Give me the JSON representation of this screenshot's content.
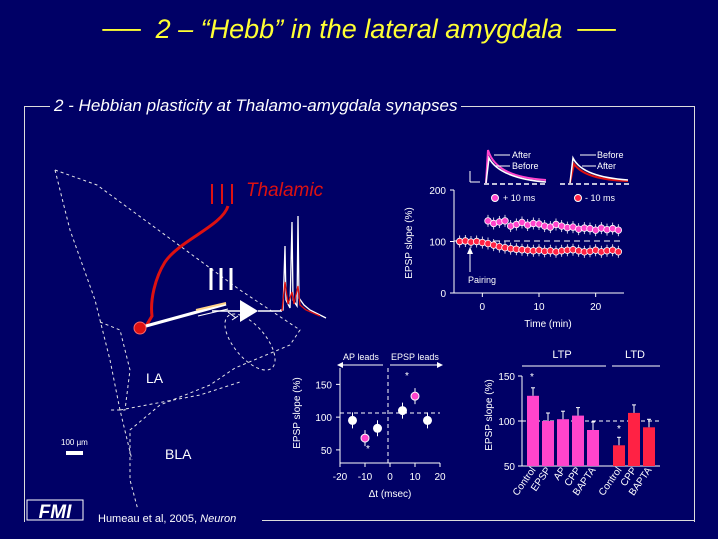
{
  "title": "2 – “Hebb” in the lateral amygdala",
  "subtitle": "2 - Hebbian plasticity at Thalamo-amygdala synapses",
  "citation": {
    "authors": "Humeau et al, 2005,",
    "journal": "Neuron"
  },
  "logo_text": "FMI",
  "anatomy": {
    "thalamic_label": "Thalamic",
    "la_label": "LA",
    "bla_label": "BLA",
    "scale_bar_label": "100 µm",
    "roman_numeral": "III"
  },
  "colors": {
    "background": "#000066",
    "title": "#ffff33",
    "thalamic": "#dd1111",
    "magenta": "#ff44cc",
    "red_bar": "#ff2244"
  },
  "chart_data": [
    {
      "type": "scatter",
      "name": "timecourse",
      "legend_top": {
        "left": [
          "After",
          "Before"
        ],
        "right": [
          "Before",
          "After"
        ]
      },
      "series_labels": [
        "+ 10 ms",
        "- 10 ms"
      ],
      "ylabel": "EPSP slope (%)",
      "xlabel": "Time (min)",
      "yticks": [
        "0",
        "100",
        "200"
      ],
      "xticks": [
        "0",
        "10",
        "20"
      ],
      "ylim": [
        0,
        200
      ],
      "xlim": [
        -5,
        25
      ],
      "annotation": "Pairing",
      "series": [
        {
          "name": "+ 10 ms",
          "color": "#ff44cc",
          "x": [
            1,
            2,
            3,
            4,
            5,
            6,
            7,
            8,
            9,
            10,
            11,
            12,
            13,
            14,
            15,
            16,
            17,
            18,
            19,
            20,
            21,
            22,
            23,
            24
          ],
          "y": [
            140,
            135,
            138,
            140,
            130,
            133,
            137,
            132,
            135,
            134,
            130,
            128,
            133,
            130,
            127,
            128,
            124,
            126,
            125,
            122,
            126,
            123,
            125,
            122
          ]
        },
        {
          "name": "- 10 ms",
          "color": "#ff2244",
          "x": [
            -4,
            -3,
            -2,
            -1,
            0,
            1,
            2,
            3,
            4,
            5,
            6,
            7,
            8,
            9,
            10,
            11,
            12,
            13,
            14,
            15,
            16,
            17,
            18,
            19,
            20,
            21,
            22,
            23,
            24
          ],
          "y": [
            100,
            101,
            99,
            100,
            98,
            96,
            93,
            90,
            88,
            86,
            85,
            84,
            83,
            82,
            83,
            81,
            82,
            80,
            82,
            83,
            84,
            82,
            80,
            81,
            83,
            80,
            82,
            83,
            80
          ]
        }
      ]
    },
    {
      "type": "scatter",
      "name": "stdp",
      "header_left": "AP leads",
      "header_right": "EPSP leads",
      "ylabel": "EPSP slope (%)",
      "xlabel": "Δt (msec)",
      "yticks": [
        "50",
        "100",
        "150"
      ],
      "xticks": [
        "-20",
        "-10",
        "0",
        "10",
        "20"
      ],
      "ylim": [
        30,
        175
      ],
      "xlim": [
        -20,
        20
      ],
      "points": [
        {
          "x": -15,
          "y": 95,
          "color": "#ffffff"
        },
        {
          "x": -10,
          "y": 68,
          "color": "#ff44cc"
        },
        {
          "x": -5,
          "y": 83,
          "color": "#ffffff"
        },
        {
          "x": 5,
          "y": 110,
          "color": "#ffffff"
        },
        {
          "x": 10,
          "y": 132,
          "color": "#ff44cc"
        },
        {
          "x": 15,
          "y": 95,
          "color": "#ffffff"
        }
      ],
      "star_labels": [
        "*",
        "*"
      ]
    },
    {
      "type": "bar",
      "name": "pharmacology",
      "group_labels": [
        "LTP",
        "LTD"
      ],
      "ylabel": "EPSP slope (%)",
      "yticks": [
        "50",
        "100",
        "150"
      ],
      "ylim": [
        50,
        150
      ],
      "categories": [
        "Control",
        "EPSP",
        "AP",
        "CPP",
        "BAPTA",
        "Control",
        "CPP",
        "BAPTA"
      ],
      "values": [
        128,
        100,
        102,
        106,
        90,
        73,
        109,
        93
      ],
      "colors": [
        "#ff44cc",
        "#ff44cc",
        "#ff44cc",
        "#ff44cc",
        "#ff44cc",
        "#ff2244",
        "#ff2244",
        "#ff2244"
      ],
      "star_labels": [
        "*",
        "*"
      ]
    }
  ]
}
